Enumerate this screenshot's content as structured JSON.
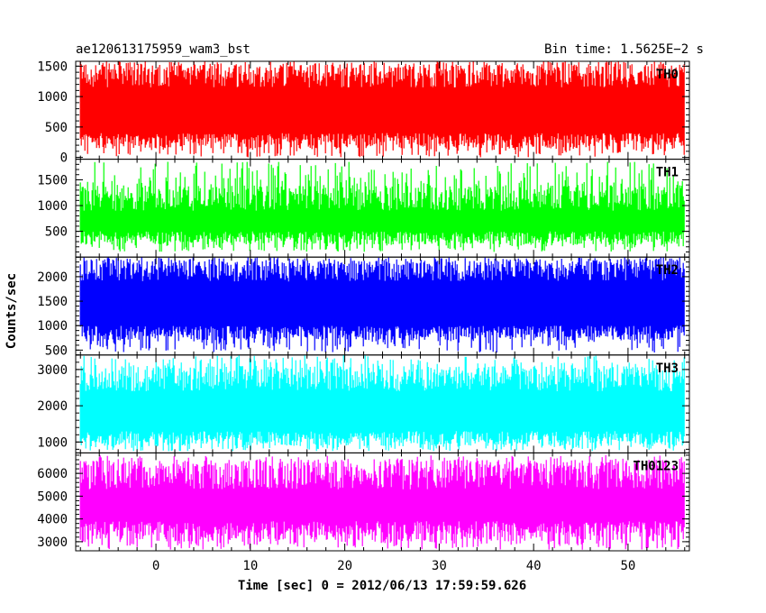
{
  "chart_data": {
    "type": "line",
    "title_left": "ae120613175959_wam3_bst",
    "title_right": "Bin time: 1.5625E−2 s",
    "xlabel": "Time [sec] 0 = 2012/06/13 17:59:59.626",
    "ylabel": "Counts/sec",
    "xlim": [
      -8.5,
      56.5
    ],
    "x_range": [
      -8,
      56
    ],
    "x_ticks": [
      0,
      10,
      20,
      30,
      40,
      50
    ],
    "x_tick_labels": [
      "0",
      "10",
      "20",
      "30",
      "40",
      "50"
    ],
    "grid": false,
    "panels": [
      {
        "label": "TH0",
        "color": "#ff0000",
        "ylim": [
          -30,
          1580
        ],
        "y_ticks": [
          0,
          500,
          1000,
          1500
        ],
        "y_tick_labels": [
          "0",
          "500",
          "1000",
          "1500"
        ],
        "band_low": [
          150,
          400
        ],
        "band_high": [
          1150,
          1580
        ],
        "spikes_low": [
          0,
          150
        ],
        "spikes_high": [
          1350,
          1580
        ]
      },
      {
        "label": "TH1",
        "color": "#00ff00",
        "ylim": [
          0,
          1900
        ],
        "y_ticks": [
          500,
          1000,
          1500
        ],
        "y_tick_labels": [
          "500",
          "1000",
          "1500"
        ],
        "band_low": [
          250,
          500
        ],
        "band_high": [
          900,
          1400
        ],
        "spikes_low": [
          100,
          250
        ],
        "spikes_high": [
          1400,
          1850
        ]
      },
      {
        "label": "TH2",
        "color": "#0000ff",
        "ylim": [
          400,
          2400
        ],
        "y_ticks": [
          500,
          1000,
          1500,
          2000
        ],
        "y_tick_labels": [
          "500",
          "1000",
          "1500",
          "2000"
        ],
        "band_low": [
          700,
          1000
        ],
        "band_high": [
          1900,
          2400
        ],
        "spikes_low": [
          450,
          700
        ],
        "spikes_high": [
          2200,
          2400
        ]
      },
      {
        "label": "TH3",
        "color": "#00ffff",
        "ylim": [
          700,
          3400
        ],
        "y_ticks": [
          1000,
          2000,
          3000
        ],
        "y_tick_labels": [
          "1000",
          "2000",
          "3000"
        ],
        "band_low": [
          900,
          1300
        ],
        "band_high": [
          2400,
          3100
        ],
        "spikes_low": [
          750,
          900
        ],
        "spikes_high": [
          3000,
          3400
        ]
      },
      {
        "label": "TH0123",
        "color": "#ff00ff",
        "ylim": [
          2600,
          6900
        ],
        "y_ticks": [
          3000,
          4000,
          5000,
          6000
        ],
        "y_tick_labels": [
          "3000",
          "4000",
          "5000",
          "6000"
        ],
        "band_low": [
          3000,
          3900
        ],
        "band_high": [
          5300,
          6600
        ],
        "spikes_low": [
          2650,
          3000
        ],
        "spikes_high": [
          6200,
          6800
        ]
      }
    ]
  }
}
